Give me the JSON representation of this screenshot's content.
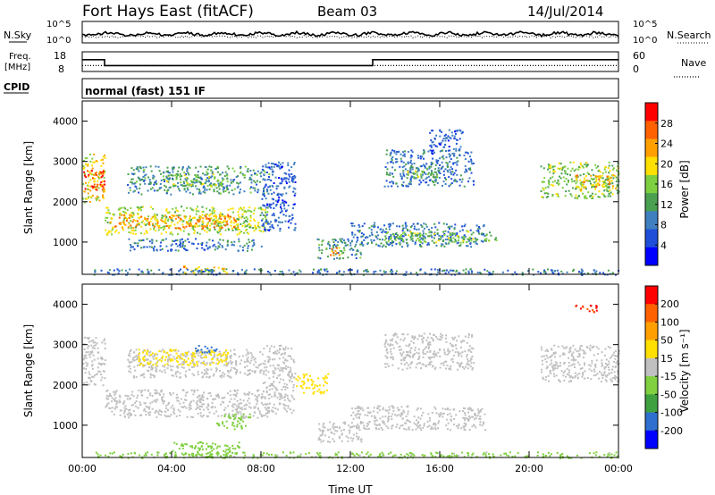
{
  "header": {
    "station": "Fort Hays East (fitACF)",
    "beam": "Beam 03",
    "date": "14/Jul/2014"
  },
  "params": {
    "nsky_label": "N.Sky",
    "nsearch_label": "N.Search",
    "nsky_ticks": [
      "10^5",
      "10^0"
    ],
    "nsearch_ticks": [
      "10^5",
      "10^0"
    ],
    "freq_label": [
      "Freq.",
      "[MHz]"
    ],
    "freq_ticks": [
      "18",
      "8"
    ],
    "nave_label": "Nave",
    "nave_ticks": [
      "60",
      "0"
    ],
    "cpid_label": "CPID",
    "cpid_text": "normal (fast) 151 IF",
    "freq_series": {
      "x_hours": [
        0,
        1,
        1,
        13,
        13,
        24
      ],
      "mhz": [
        14,
        14,
        11,
        11,
        14,
        14
      ]
    },
    "nave_series": {
      "x_hours": [
        0,
        24
      ],
      "nave": [
        18,
        18
      ]
    }
  },
  "colors": {
    "power_scale": [
      "#0000ff",
      "#1f4fd8",
      "#3f7fbf",
      "#4aa050",
      "#7fd040",
      "#ffe000",
      "#ffa000",
      "#ff6000",
      "#ff0000"
    ],
    "velocity_scale": [
      "#0000ff",
      "#2f6fd0",
      "#3fa040",
      "#80d040",
      "#c0c0c0",
      "#ffe000",
      "#ffa000",
      "#ff6000",
      "#ff0000"
    ]
  },
  "chart_data": [
    {
      "type": "heatmap",
      "name": "power",
      "ylabel": "Slant Range [km]",
      "xlabel": "",
      "xlim": [
        0,
        24
      ],
      "ylim": [
        200,
        4500
      ],
      "x_ticks": [
        "00:00",
        "04:00",
        "08:00",
        "12:00",
        "16:00",
        "20:00",
        "00:00"
      ],
      "y_ticks": [
        "1000",
        "2000",
        "3000",
        "4000"
      ],
      "colorbar": {
        "label": "Power [dB]",
        "ticks": [
          "4",
          "8",
          "12",
          "16",
          "20",
          "24",
          "28"
        ],
        "range": [
          0,
          30
        ]
      },
      "regions": [
        {
          "t": [
            0.0,
            1.0
          ],
          "r": [
            2000,
            3200
          ],
          "value": 18
        },
        {
          "t": [
            0.0,
            1.0
          ],
          "r": [
            2300,
            2800
          ],
          "value": 26
        },
        {
          "t": [
            1.0,
            8.3
          ],
          "r": [
            1200,
            1900
          ],
          "value": 16
        },
        {
          "t": [
            1.2,
            7.0
          ],
          "r": [
            1350,
            1700
          ],
          "value": 22
        },
        {
          "t": [
            2.0,
            8.5
          ],
          "r": [
            2200,
            2900
          ],
          "value": 10
        },
        {
          "t": [
            3.5,
            6.5
          ],
          "r": [
            2400,
            2700
          ],
          "value": 14
        },
        {
          "t": [
            2.0,
            8.0
          ],
          "r": [
            800,
            1100
          ],
          "value": 8
        },
        {
          "t": [
            8.0,
            9.5
          ],
          "r": [
            1300,
            3000
          ],
          "value": 6
        },
        {
          "t": [
            10.5,
            12.5
          ],
          "r": [
            600,
            1100
          ],
          "value": 10
        },
        {
          "t": [
            11.0,
            11.5
          ],
          "r": [
            650,
            900
          ],
          "value": 22
        },
        {
          "t": [
            12.0,
            18.0
          ],
          "r": [
            900,
            1500
          ],
          "value": 8
        },
        {
          "t": [
            13.5,
            18.5
          ],
          "r": [
            1000,
            1300
          ],
          "value": 14
        },
        {
          "t": [
            13.5,
            17.5
          ],
          "r": [
            2400,
            3300
          ],
          "value": 8
        },
        {
          "t": [
            14.5,
            16.0
          ],
          "r": [
            2600,
            2900
          ],
          "value": 14
        },
        {
          "t": [
            15.5,
            17.0
          ],
          "r": [
            3200,
            3800
          ],
          "value": 6
        },
        {
          "t": [
            20.5,
            24.0
          ],
          "r": [
            2100,
            3000
          ],
          "value": 14
        },
        {
          "t": [
            22.0,
            24.0
          ],
          "r": [
            2300,
            2700
          ],
          "value": 20
        },
        {
          "t": [
            4.5,
            6.5
          ],
          "r": [
            250,
            450
          ],
          "value": 20
        },
        {
          "t": [
            0.5,
            24.0
          ],
          "r": [
            200,
            350
          ],
          "value": 8
        }
      ]
    },
    {
      "type": "heatmap",
      "name": "velocity",
      "ylabel": "Slant Range [km]",
      "xlabel": "Time UT",
      "xlim": [
        0,
        24
      ],
      "ylim": [
        200,
        4500
      ],
      "x_ticks": [
        "00:00",
        "04:00",
        "08:00",
        "12:00",
        "16:00",
        "20:00",
        "00:00"
      ],
      "y_ticks": [
        "1000",
        "2000",
        "3000",
        "4000"
      ],
      "colorbar": {
        "label": "Velocity [m s⁻¹]",
        "ticks": [
          "200",
          "100",
          "50",
          "15",
          "-15",
          "-50",
          "-100",
          "-200"
        ],
        "range": [
          -250,
          250
        ]
      },
      "regions": [
        {
          "t": [
            0.0,
            1.0
          ],
          "r": [
            2000,
            3200
          ],
          "value": 0
        },
        {
          "t": [
            1.0,
            8.3
          ],
          "r": [
            1200,
            1900
          ],
          "value": 0
        },
        {
          "t": [
            2.0,
            8.0
          ],
          "r": [
            2200,
            2900
          ],
          "value": 0
        },
        {
          "t": [
            2.5,
            6.5
          ],
          "r": [
            2500,
            2900
          ],
          "value": 60
        },
        {
          "t": [
            5.0,
            6.0
          ],
          "r": [
            2800,
            3000
          ],
          "value": -180
        },
        {
          "t": [
            6.0,
            7.5
          ],
          "r": [
            900,
            1300
          ],
          "value": -60
        },
        {
          "t": [
            8.0,
            9.5
          ],
          "r": [
            1300,
            3000
          ],
          "value": 0
        },
        {
          "t": [
            10.5,
            12.5
          ],
          "r": [
            600,
            1100
          ],
          "value": 0
        },
        {
          "t": [
            9.5,
            11.0
          ],
          "r": [
            1800,
            2300
          ],
          "value": 60
        },
        {
          "t": [
            12.0,
            18.0
          ],
          "r": [
            900,
            1500
          ],
          "value": 0
        },
        {
          "t": [
            13.5,
            17.5
          ],
          "r": [
            2400,
            3300
          ],
          "value": 0
        },
        {
          "t": [
            20.5,
            24.0
          ],
          "r": [
            2100,
            3000
          ],
          "value": 0
        },
        {
          "t": [
            22.0,
            23.0
          ],
          "r": [
            3800,
            4000
          ],
          "value": 200
        },
        {
          "t": [
            4.0,
            7.0
          ],
          "r": [
            250,
            600
          ],
          "value": -50
        },
        {
          "t": [
            0.5,
            24.0
          ],
          "r": [
            200,
            350
          ],
          "value": -40
        }
      ]
    }
  ]
}
